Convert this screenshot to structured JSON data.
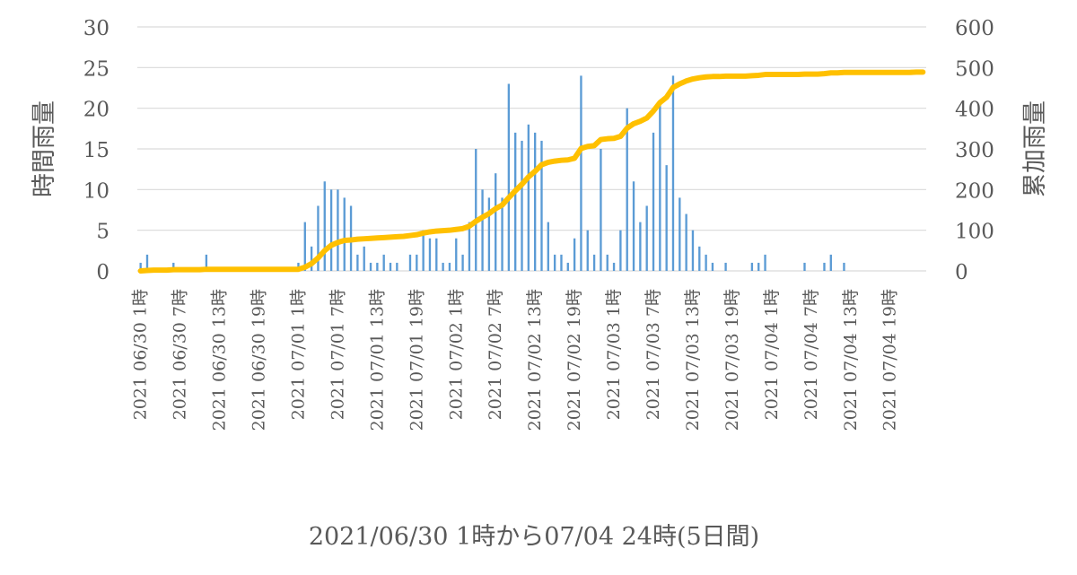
{
  "chart_data": {
    "type": "bar+line",
    "xlabel": "2021/06/30 1時から07/04 24時(5日間)",
    "ylabel_left": "時間雨量",
    "ylabel_right": "累加雨量",
    "ylim_left": [
      0,
      30
    ],
    "ylim_right": [
      0,
      600
    ],
    "yticks_left": [
      "0",
      "5",
      "10",
      "15",
      "20",
      "25",
      "30"
    ],
    "yticks_right": [
      "0",
      "100",
      "200",
      "300",
      "400",
      "500",
      "600"
    ],
    "grid": true,
    "x_tick_labels": [
      "2021 06/30 1時",
      "2021 06/30 7時",
      "2021 06/30 13時",
      "2021 06/30 19時",
      "2021 07/01 1時",
      "2021 07/01 7時",
      "2021 07/01 13時",
      "2021 07/01 19時",
      "2021 07/02 1時",
      "2021 07/02 7時",
      "2021 07/02 13時",
      "2021 07/02 19時",
      "2021 07/03 1時",
      "2021 07/03 7時",
      "2021 07/03 13時",
      "2021 07/03 19時",
      "2021 07/04 1時",
      "2021 07/04 7時",
      "2021 07/04 13時",
      "2021 07/04 19時"
    ],
    "hours": 120,
    "series": [
      {
        "type": "bar",
        "axis": "left",
        "color": "#5B9BD5",
        "values": [
          1,
          2,
          0,
          0,
          0,
          1,
          0,
          0,
          0,
          0,
          2,
          0,
          0,
          0,
          0,
          0,
          0,
          0,
          0,
          0,
          0,
          0,
          0,
          0,
          1,
          6,
          3,
          8,
          11,
          10,
          10,
          9,
          8,
          2,
          3,
          1,
          1,
          2,
          1,
          1,
          0,
          2,
          2,
          5,
          4,
          4,
          1,
          1,
          4,
          2,
          6,
          15,
          10,
          9,
          12,
          9,
          23,
          17,
          16,
          18,
          17,
          16,
          6,
          2,
          2,
          1,
          4,
          24,
          5,
          2,
          15,
          2,
          1,
          5,
          20,
          11,
          6,
          8,
          17,
          21,
          13,
          24,
          9,
          7,
          5,
          3,
          2,
          1,
          0,
          1,
          0,
          0,
          0,
          1,
          1,
          2,
          0,
          0,
          0,
          0,
          0,
          1,
          0,
          0,
          1,
          2,
          0,
          1,
          0,
          0,
          0,
          0,
          0,
          0,
          0,
          0,
          0,
          0,
          0,
          0
        ]
      },
      {
        "type": "line",
        "axis": "right",
        "color": "#FFC000",
        "values": [
          0,
          1,
          2,
          2,
          2,
          3,
          3,
          3,
          3,
          3,
          4,
          4,
          4,
          4,
          4,
          4,
          4,
          4,
          4,
          4,
          4,
          4,
          4,
          4,
          4,
          9,
          18,
          32,
          50,
          63,
          70,
          75,
          76,
          78,
          79,
          80,
          81,
          82,
          83,
          84,
          85,
          87,
          89,
          93,
          96,
          98,
          99,
          100,
          102,
          104,
          110,
          122,
          132,
          141,
          153,
          162,
          180,
          197,
          213,
          231,
          245,
          261,
          267,
          270,
          272,
          273,
          277,
          301,
          306,
          308,
          323,
          325,
          326,
          331,
          351,
          362,
          368,
          376,
          393,
          414,
          427,
          451,
          460,
          467,
          472,
          475,
          477,
          478,
          478,
          479,
          479,
          479,
          479,
          480,
          481,
          483,
          483,
          483,
          483,
          483,
          483,
          484,
          484,
          484,
          485,
          487,
          487,
          488,
          488,
          488,
          488,
          488,
          488,
          488,
          488,
          488,
          488,
          488,
          489,
          489
        ]
      }
    ]
  }
}
